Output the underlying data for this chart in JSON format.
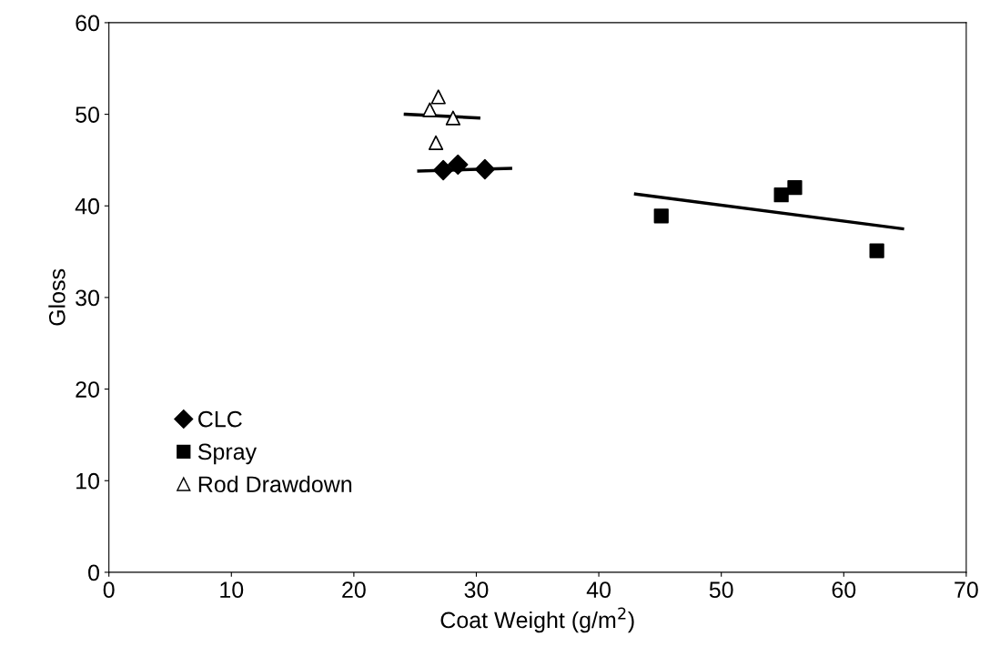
{
  "chart_data": {
    "type": "scatter",
    "xlabel": "Coat Weight (g/m$^{2}$)",
    "ylabel": "Gloss",
    "xlim": [
      0,
      70
    ],
    "xticks": [
      0,
      10,
      20,
      30,
      40,
      50,
      60,
      70
    ],
    "ylim": [
      0,
      60
    ],
    "yticks": [
      0,
      10,
      20,
      30,
      40,
      50,
      60
    ],
    "grid": false,
    "legend": "bottom left",
    "series": [
      {
        "name": "CLC",
        "marker": "diamond",
        "color": "#000000",
        "x": [
          27.3,
          28.5,
          30.7
        ],
        "values": [
          43.9,
          44.5,
          44.0
        ]
      },
      {
        "name": "Spray",
        "marker": "square",
        "color": "#000000",
        "x": [
          45.1,
          54.9,
          56.0,
          62.7
        ],
        "values": [
          38.9,
          41.2,
          42.0,
          35.1
        ]
      },
      {
        "name": "Rod Drawdown",
        "marker": "triangle",
        "color": "#ffffff",
        "x": [
          26.9,
          26.2,
          28.1,
          26.7
        ],
        "values": [
          51.9,
          50.5,
          49.6,
          46.9
        ]
      },
      {
        "type": "line",
        "marker": "none",
        "color": "#000000",
        "x": [
          25.3,
          32.8
        ],
        "values": [
          43.8,
          44.1
        ]
      },
      {
        "type": "line",
        "marker": "none",
        "color": "#000000",
        "x": [
          43.0,
          64.8
        ],
        "values": [
          41.3,
          37.5
        ]
      },
      {
        "type": "line",
        "marker": "none",
        "color": "#000000",
        "x": [
          24.2,
          30.2
        ],
        "values": [
          50.0,
          49.6
        ]
      }
    ]
  }
}
